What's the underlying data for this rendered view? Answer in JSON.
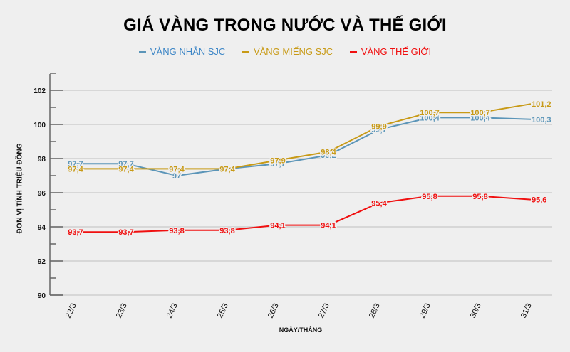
{
  "chart_data": {
    "type": "line",
    "title": "GIÁ VÀNG TRONG NƯỚC VÀ THẾ GIỚI",
    "xlabel": "NGÀY/THÁNG",
    "ylabel": "ĐƠN VỊ TÍNH TRIỆU ĐỒNG",
    "categories": [
      "22/3",
      "23/3",
      "24/3",
      "25/3",
      "26/3",
      "27/3",
      "28/3",
      "29/3",
      "30/3",
      "31/3"
    ],
    "ylim": [
      90,
      103
    ],
    "yticks": [
      90,
      92,
      94,
      96,
      98,
      100,
      102
    ],
    "grid": true,
    "legend_position": "top",
    "series": [
      {
        "name": "VÀNG NHẪN SJC",
        "color": "#5b95b8",
        "values": [
          97.7,
          97.7,
          97.0,
          97.4,
          97.7,
          98.2,
          99.7,
          100.4,
          100.4,
          100.3
        ],
        "labels": [
          "97,7",
          "97,7",
          "97",
          "97,4",
          "97,7",
          "98,2",
          "99,7",
          "100,4",
          "100,4",
          "100,3"
        ]
      },
      {
        "name": "VÀNG MIẾNG SJC",
        "color": "#c89a16",
        "values": [
          97.4,
          97.4,
          97.4,
          97.4,
          97.9,
          98.4,
          99.9,
          100.7,
          100.7,
          101.2
        ],
        "labels": [
          "97,4",
          "97,4",
          "97,4",
          "97,4",
          "97,9",
          "98,4",
          "99,9",
          "100,7",
          "100,7",
          "101,2"
        ]
      },
      {
        "name": "VÀNG THẾ GIỚI",
        "color": "#f01010",
        "values": [
          93.7,
          93.7,
          93.8,
          93.8,
          94.1,
          94.1,
          95.4,
          95.8,
          95.8,
          95.6
        ],
        "labels": [
          "93,7",
          "93,7",
          "93,8",
          "93,8",
          "94,1",
          "94,1",
          "95,4",
          "95,8",
          "95,8",
          "95,6"
        ]
      }
    ]
  }
}
